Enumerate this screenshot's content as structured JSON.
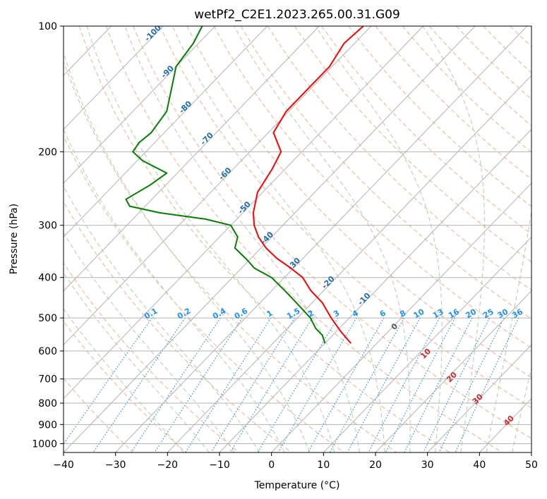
{
  "chart_data": {
    "type": "line",
    "chart_kind": "Skew-T log-P diagram",
    "title": "wetPf2_C2E1.2023.265.00.31.G09",
    "xlabel": "Temperature (°C)",
    "ylabel": "Pressure (hPa)",
    "xlim": [
      -40,
      50
    ],
    "ylim": [
      1050,
      100
    ],
    "y_scale": "log",
    "grid": true,
    "x_ticks": [
      -40,
      -30,
      -20,
      -10,
      0,
      10,
      20,
      30,
      40,
      50
    ],
    "y_ticks": [
      100,
      200,
      300,
      400,
      500,
      600,
      700,
      800,
      900,
      1000
    ],
    "x_tick_labels": [
      "−40",
      "−30",
      "−20",
      "−10",
      "0",
      "10",
      "20",
      "30",
      "40",
      "50"
    ],
    "y_tick_labels": [
      "100",
      "200",
      "300",
      "400",
      "500",
      "600",
      "700",
      "800",
      "900",
      "1000"
    ],
    "series": [
      {
        "color": "#ff0000",
        "points": [
          [
            100,
            -61.5
          ],
          [
            110,
            -62
          ],
          [
            125,
            -60.5
          ],
          [
            140,
            -60.5
          ],
          [
            160,
            -60.5
          ],
          [
            180,
            -59
          ],
          [
            200,
            -54
          ],
          [
            220,
            -52.5
          ],
          [
            250,
            -51
          ],
          [
            280,
            -48
          ],
          [
            300,
            -45.5
          ],
          [
            320,
            -42.5
          ],
          [
            340,
            -39
          ],
          [
            360,
            -35
          ],
          [
            380,
            -30.5
          ],
          [
            400,
            -26.5
          ],
          [
            430,
            -22.5
          ],
          [
            460,
            -18
          ],
          [
            500,
            -13.5
          ],
          [
            540,
            -9
          ],
          [
            575,
            -5
          ]
        ]
      },
      {
        "color": "#008000",
        "points": [
          [
            100,
            -92.5
          ],
          [
            110,
            -91
          ],
          [
            125,
            -90
          ],
          [
            140,
            -87
          ],
          [
            160,
            -83.5
          ],
          [
            180,
            -82.5
          ],
          [
            190,
            -83
          ],
          [
            200,
            -82.5
          ],
          [
            210,
            -79
          ],
          [
            225,
            -72
          ],
          [
            240,
            -73
          ],
          [
            260,
            -75
          ],
          [
            270,
            -73
          ],
          [
            280,
            -66
          ],
          [
            290,
            -56
          ],
          [
            300,
            -50
          ],
          [
            320,
            -46.5
          ],
          [
            340,
            -45
          ],
          [
            360,
            -41
          ],
          [
            380,
            -37.5
          ],
          [
            400,
            -32.5
          ],
          [
            430,
            -27.5
          ],
          [
            460,
            -23
          ],
          [
            500,
            -17.5
          ],
          [
            530,
            -14.5
          ],
          [
            550,
            -12
          ],
          [
            575,
            -10
          ]
        ]
      }
    ],
    "dry_adiabat_labels": [
      "-100",
      "-90",
      "-80",
      "-70",
      "-60",
      "-50",
      "-40",
      "-30",
      "-20",
      "-10"
    ],
    "mixing_ratio_labels": [
      "0.1",
      "0.2",
      "0.4",
      "0.6",
      "1",
      "1.5",
      "2",
      "3",
      "4",
      "6",
      "8",
      "10",
      "13",
      "16",
      "20",
      "25",
      "30",
      "36"
    ],
    "moist_adiabat_labels": [
      "0",
      "10",
      "20",
      "30",
      "40"
    ]
  },
  "colors": {
    "temperature": "#ff0000",
    "dewpoint": "#008000",
    "isotherm": "#b3b3b3",
    "isobar": "#b3b3b3",
    "dry_adiabat": "#ffab91",
    "moist_adiabat": "#a5d6a7",
    "mixing_ratio": "#1e90ff"
  }
}
